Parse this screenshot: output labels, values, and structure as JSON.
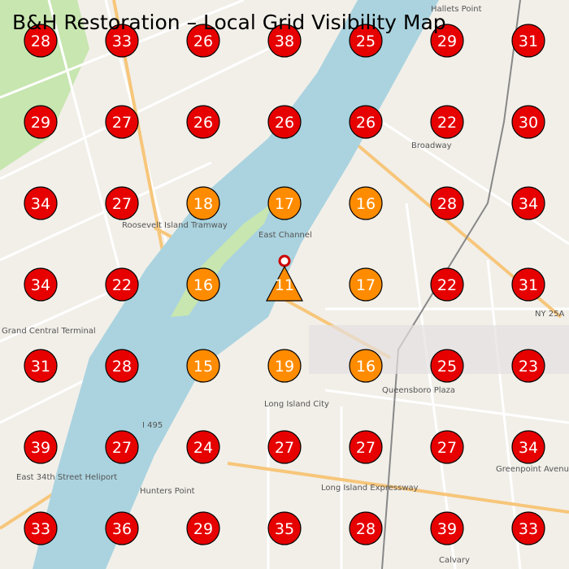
{
  "header": {
    "title": "B&H Restoration – Local Grid Visibility Map"
  },
  "grid": {
    "rows": [
      [
        {
          "value": 28,
          "color": "#e60000"
        },
        {
          "value": 33,
          "color": "#e60000"
        },
        {
          "value": 26,
          "color": "#e60000"
        },
        {
          "value": 38,
          "color": "#e60000"
        },
        {
          "value": 25,
          "color": "#e60000"
        },
        {
          "value": 29,
          "color": "#e60000"
        },
        {
          "value": 31,
          "color": "#e60000"
        }
      ],
      [
        {
          "value": 29,
          "color": "#e60000"
        },
        {
          "value": 27,
          "color": "#e60000"
        },
        {
          "value": 26,
          "color": "#e60000"
        },
        {
          "value": 26,
          "color": "#e60000"
        },
        {
          "value": 26,
          "color": "#e60000"
        },
        {
          "value": 22,
          "color": "#e60000"
        },
        {
          "value": 30,
          "color": "#e60000"
        }
      ],
      [
        {
          "value": 34,
          "color": "#e60000"
        },
        {
          "value": 27,
          "color": "#e60000"
        },
        {
          "value": 18,
          "color": "#ff8c00"
        },
        {
          "value": 17,
          "color": "#ff8c00"
        },
        {
          "value": 16,
          "color": "#ff8c00"
        },
        {
          "value": 28,
          "color": "#e60000"
        },
        {
          "value": 34,
          "color": "#e60000"
        }
      ],
      [
        {
          "value": 34,
          "color": "#e60000"
        },
        {
          "value": 22,
          "color": "#e60000"
        },
        {
          "value": 16,
          "color": "#ff8c00"
        },
        {
          "value": 11,
          "color": "#ff8c00",
          "shape": "triangle"
        },
        {
          "value": 17,
          "color": "#ff8c00"
        },
        {
          "value": 22,
          "color": "#e60000"
        },
        {
          "value": 31,
          "color": "#e60000"
        }
      ],
      [
        {
          "value": 31,
          "color": "#e60000"
        },
        {
          "value": 28,
          "color": "#e60000"
        },
        {
          "value": 15,
          "color": "#ff8c00"
        },
        {
          "value": 19,
          "color": "#ff8c00"
        },
        {
          "value": 16,
          "color": "#ff8c00"
        },
        {
          "value": 25,
          "color": "#e60000"
        },
        {
          "value": 23,
          "color": "#e60000"
        }
      ],
      [
        {
          "value": 39,
          "color": "#e60000"
        },
        {
          "value": 27,
          "color": "#e60000"
        },
        {
          "value": 24,
          "color": "#e60000"
        },
        {
          "value": 27,
          "color": "#e60000"
        },
        {
          "value": 27,
          "color": "#e60000"
        },
        {
          "value": 27,
          "color": "#e60000"
        },
        {
          "value": 34,
          "color": "#e60000"
        }
      ],
      [
        {
          "value": 33,
          "color": "#e60000"
        },
        {
          "value": 36,
          "color": "#e60000"
        },
        {
          "value": 29,
          "color": "#e60000"
        },
        {
          "value": 35,
          "color": "#e60000"
        },
        {
          "value": 28,
          "color": "#e60000"
        },
        {
          "value": 39,
          "color": "#e60000"
        },
        {
          "value": 33,
          "color": "#e60000"
        }
      ]
    ]
  },
  "map_labels": [
    "Roosevelt Island Tramway",
    "Grand Central Terminal",
    "Long Island City",
    "Hunters Point",
    "Hallets Point",
    "East Channel",
    "NY 25A",
    "I 495",
    "Greenpoint Avenue",
    "Calvary",
    "Broadway",
    "Queensboro Plaza",
    "Long Island Expressway",
    "East 34th Street Heliport"
  ]
}
